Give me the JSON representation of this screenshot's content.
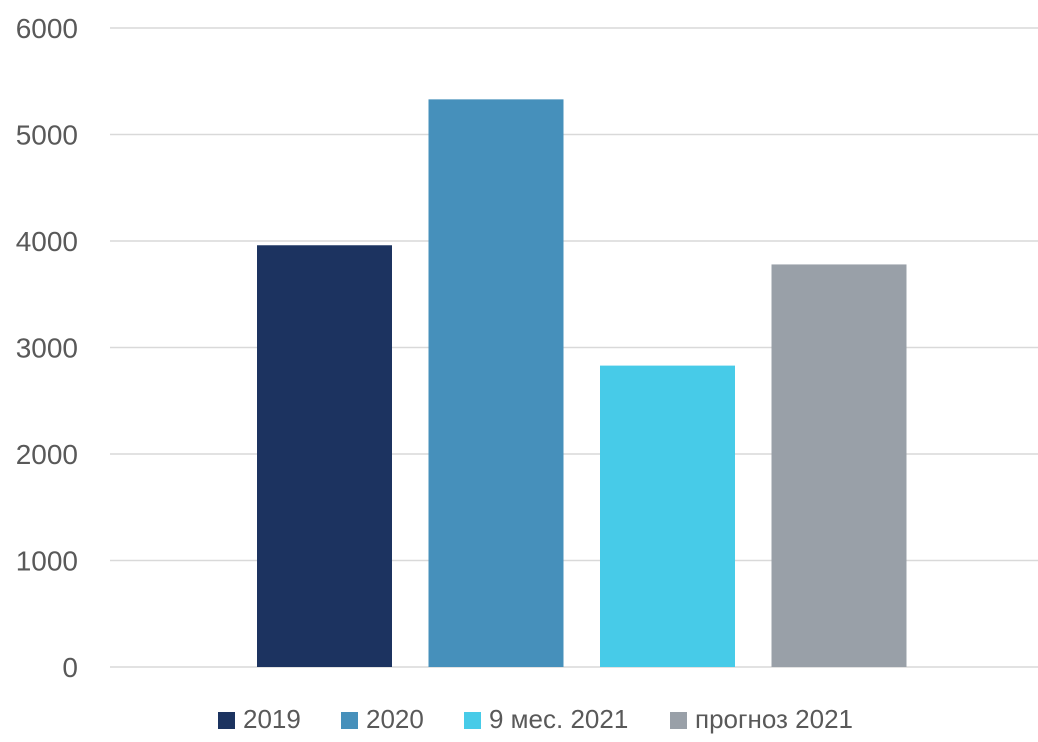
{
  "chart_data": {
    "type": "bar",
    "categories": [
      ""
    ],
    "series": [
      {
        "name": "2019",
        "values": [
          3960
        ],
        "color": "#1c3360"
      },
      {
        "name": "2020",
        "values": [
          5330
        ],
        "color": "#4690bb"
      },
      {
        "name": "9 мес. 2021",
        "values": [
          2830
        ],
        "color": "#47cbe8"
      },
      {
        "name": "прогноз 2021",
        "values": [
          3780
        ],
        "color": "#99a0a8"
      }
    ],
    "title": "",
    "xlabel": "",
    "ylabel": "",
    "ylim": [
      0,
      6000
    ],
    "yticks": [
      0,
      1000,
      2000,
      3000,
      4000,
      5000,
      6000
    ],
    "grid": true,
    "legend_position": "bottom"
  }
}
